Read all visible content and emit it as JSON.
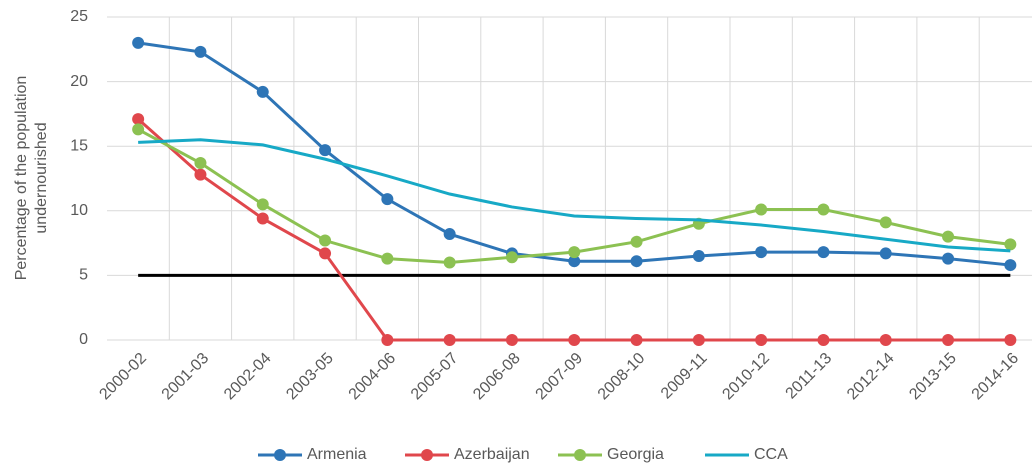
{
  "chart_data": {
    "type": "line",
    "ylabel": [
      "Percentage of the population",
      "undernourished"
    ],
    "categories": [
      "2000-02",
      "2001-03",
      "2002-04",
      "2003-05",
      "2004-06",
      "2005-07",
      "2006-08",
      "2007-09",
      "2008-10",
      "2009-11",
      "2010-12",
      "2011-13",
      "2012-14",
      "2013-15",
      "2014-16"
    ],
    "series": [
      {
        "name": "Armenia",
        "color": "#2e75b6",
        "markers": true,
        "values": [
          23,
          22.3,
          19.2,
          14.7,
          10.9,
          8.2,
          6.7,
          6.1,
          6.1,
          6.5,
          6.8,
          6.8,
          6.7,
          6.3,
          5.8
        ]
      },
      {
        "name": "Azerbaijan",
        "color": "#e0474c",
        "markers": true,
        "values": [
          17.1,
          12.8,
          9.4,
          6.7,
          0,
          0,
          0,
          0,
          0,
          0,
          0,
          0,
          0,
          0,
          0
        ]
      },
      {
        "name": "Georgia",
        "color": "#8cc152",
        "markers": true,
        "values": [
          16.3,
          13.7,
          10.5,
          7.7,
          6.3,
          6.0,
          6.4,
          6.8,
          7.6,
          9.0,
          10.1,
          10.1,
          9.1,
          8.0,
          7.4
        ]
      },
      {
        "name": "CCA",
        "color": "#17a9c6",
        "markers": false,
        "values": [
          15.3,
          15.5,
          15.1,
          14.0,
          12.7,
          11.3,
          10.3,
          9.6,
          9.4,
          9.3,
          8.9,
          8.4,
          7.8,
          7.2,
          6.9
        ]
      }
    ],
    "hline": {
      "value": 5,
      "color": "#000000"
    },
    "ylim": [
      0,
      25
    ],
    "yticks": [
      0,
      5,
      10,
      15,
      20,
      25
    ],
    "grid": true,
    "legend": "bottom"
  }
}
